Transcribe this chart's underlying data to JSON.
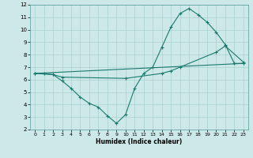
{
  "xlabel": "Humidex (Indice chaleur)",
  "background_color": "#cce8e8",
  "grid_color": "#aad0d0",
  "line_color": "#1a7a6e",
  "xlim": [
    -0.5,
    23.5
  ],
  "ylim": [
    2,
    12
  ],
  "xticks": [
    0,
    1,
    2,
    3,
    4,
    5,
    6,
    7,
    8,
    9,
    10,
    11,
    12,
    13,
    14,
    15,
    16,
    17,
    18,
    19,
    20,
    21,
    22,
    23
  ],
  "yticks": [
    2,
    3,
    4,
    5,
    6,
    7,
    8,
    9,
    10,
    11,
    12
  ],
  "line1_x": [
    0,
    1,
    2,
    3,
    4,
    5,
    6,
    7,
    8,
    9,
    10,
    11,
    12,
    13,
    14,
    15,
    16,
    17,
    18,
    19,
    20,
    21,
    22,
    23
  ],
  "line1_y": [
    6.5,
    6.5,
    6.4,
    5.9,
    5.3,
    4.6,
    4.1,
    3.8,
    3.1,
    2.5,
    3.2,
    5.3,
    6.5,
    7.0,
    8.6,
    10.2,
    11.3,
    11.7,
    11.2,
    10.6,
    9.8,
    8.8,
    7.3,
    7.3
  ],
  "line2_x": [
    0,
    2,
    3,
    10,
    14,
    15,
    16,
    20,
    21,
    23
  ],
  "line2_y": [
    6.5,
    6.4,
    6.2,
    6.1,
    6.5,
    6.7,
    7.0,
    8.2,
    8.7,
    7.4
  ],
  "line3_x": [
    0,
    23
  ],
  "line3_y": [
    6.5,
    7.3
  ]
}
